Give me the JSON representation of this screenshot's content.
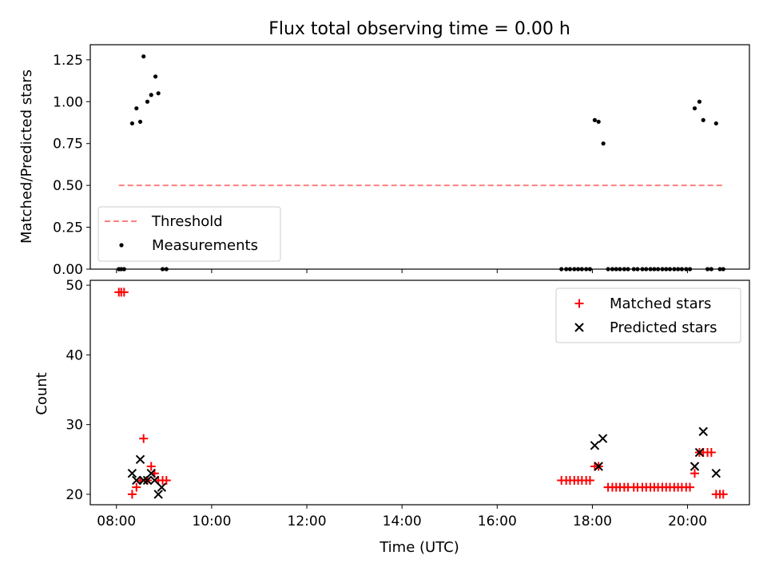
{
  "chart_data": [
    {
      "type": "scatter",
      "title": "Flux total observing time = 0.00 h",
      "xlabel": "",
      "ylabel": "Matched/Predicted stars",
      "ylim": [
        0,
        1.34
      ],
      "yticks": [
        "0.00",
        "0.25",
        "0.50",
        "0.75",
        "1.00",
        "1.25"
      ],
      "legend_position": "lower-left",
      "threshold": {
        "name": "Threshold",
        "value": 0.5,
        "x": [
          8.05,
          20.75
        ],
        "color": "#ff7f7f",
        "style": "dashed"
      },
      "series": [
        {
          "name": "Measurements",
          "color": "#000000",
          "marker": "dot",
          "points": [
            [
              8.05,
              0.0
            ],
            [
              8.1,
              0.0
            ],
            [
              8.16,
              0.0
            ],
            [
              8.33,
              0.87
            ],
            [
              8.42,
              0.96
            ],
            [
              8.5,
              0.88
            ],
            [
              8.57,
              1.27
            ],
            [
              8.65,
              1.0
            ],
            [
              8.73,
              1.04
            ],
            [
              8.82,
              1.15
            ],
            [
              8.88,
              1.05
            ],
            [
              8.97,
              0.0
            ],
            [
              9.05,
              0.0
            ],
            [
              17.35,
              0.0
            ],
            [
              17.45,
              0.0
            ],
            [
              17.53,
              0.0
            ],
            [
              17.62,
              0.0
            ],
            [
              17.7,
              0.0
            ],
            [
              17.78,
              0.0
            ],
            [
              17.87,
              0.0
            ],
            [
              17.95,
              0.0
            ],
            [
              18.05,
              0.89
            ],
            [
              18.13,
              0.88
            ],
            [
              18.23,
              0.75
            ],
            [
              18.33,
              0.0
            ],
            [
              18.42,
              0.0
            ],
            [
              18.5,
              0.0
            ],
            [
              18.58,
              0.0
            ],
            [
              18.67,
              0.0
            ],
            [
              18.75,
              0.0
            ],
            [
              18.87,
              0.0
            ],
            [
              18.95,
              0.0
            ],
            [
              19.05,
              0.0
            ],
            [
              19.13,
              0.0
            ],
            [
              19.22,
              0.0
            ],
            [
              19.3,
              0.0
            ],
            [
              19.38,
              0.0
            ],
            [
              19.47,
              0.0
            ],
            [
              19.55,
              0.0
            ],
            [
              19.63,
              0.0
            ],
            [
              19.72,
              0.0
            ],
            [
              19.8,
              0.0
            ],
            [
              19.88,
              0.0
            ],
            [
              19.97,
              0.0
            ],
            [
              20.05,
              0.0
            ],
            [
              20.15,
              0.96
            ],
            [
              20.25,
              1.0
            ],
            [
              20.33,
              0.89
            ],
            [
              20.42,
              0.0
            ],
            [
              20.5,
              0.0
            ],
            [
              20.6,
              0.87
            ],
            [
              20.68,
              0.0
            ],
            [
              20.75,
              0.0
            ]
          ]
        }
      ]
    },
    {
      "type": "scatter",
      "title": "",
      "xlabel": "Time (UTC)",
      "ylabel": "Count",
      "ylim": [
        18.5,
        50.7
      ],
      "yticks": [
        "20",
        "30",
        "40",
        "50"
      ],
      "xlim": [
        7.45,
        21.3
      ],
      "xticks": [
        {
          "value": 8,
          "label": "08:00"
        },
        {
          "value": 10,
          "label": "10:00"
        },
        {
          "value": 12,
          "label": "12:00"
        },
        {
          "value": 14,
          "label": "14:00"
        },
        {
          "value": 16,
          "label": "16:00"
        },
        {
          "value": 18,
          "label": "18:00"
        },
        {
          "value": 20,
          "label": "20:00"
        }
      ],
      "legend_position": "upper-right",
      "series": [
        {
          "name": "Matched stars",
          "color": "#ff0000",
          "marker": "plus",
          "points": [
            [
              8.05,
              49
            ],
            [
              8.1,
              49
            ],
            [
              8.16,
              49
            ],
            [
              8.33,
              20
            ],
            [
              8.42,
              21
            ],
            [
              8.5,
              22
            ],
            [
              8.57,
              28
            ],
            [
              8.65,
              22
            ],
            [
              8.73,
              24
            ],
            [
              8.8,
              23
            ],
            [
              8.88,
              22
            ],
            [
              8.97,
              22
            ],
            [
              9.05,
              22
            ],
            [
              17.35,
              22
            ],
            [
              17.45,
              22
            ],
            [
              17.53,
              22
            ],
            [
              17.62,
              22
            ],
            [
              17.7,
              22
            ],
            [
              17.78,
              22
            ],
            [
              17.87,
              22
            ],
            [
              17.95,
              22
            ],
            [
              18.05,
              24
            ],
            [
              18.13,
              24
            ],
            [
              18.33,
              21
            ],
            [
              18.42,
              21
            ],
            [
              18.5,
              21
            ],
            [
              18.58,
              21
            ],
            [
              18.67,
              21
            ],
            [
              18.75,
              21
            ],
            [
              18.87,
              21
            ],
            [
              18.95,
              21
            ],
            [
              19.05,
              21
            ],
            [
              19.13,
              21
            ],
            [
              19.22,
              21
            ],
            [
              19.3,
              21
            ],
            [
              19.38,
              21
            ],
            [
              19.47,
              21
            ],
            [
              19.55,
              21
            ],
            [
              19.63,
              21
            ],
            [
              19.72,
              21
            ],
            [
              19.8,
              21
            ],
            [
              19.88,
              21
            ],
            [
              19.97,
              21
            ],
            [
              20.05,
              21
            ],
            [
              20.15,
              23
            ],
            [
              20.25,
              26
            ],
            [
              20.33,
              26
            ],
            [
              20.42,
              26
            ],
            [
              20.5,
              26
            ],
            [
              20.6,
              20
            ],
            [
              20.68,
              20
            ],
            [
              20.75,
              20
            ]
          ]
        },
        {
          "name": "Predicted stars",
          "color": "#000000",
          "marker": "x",
          "points": [
            [
              8.33,
              23
            ],
            [
              8.42,
              22
            ],
            [
              8.5,
              25
            ],
            [
              8.57,
              22
            ],
            [
              8.65,
              22
            ],
            [
              8.73,
              23
            ],
            [
              8.8,
              22
            ],
            [
              8.88,
              20
            ],
            [
              8.95,
              21
            ],
            [
              18.05,
              27
            ],
            [
              18.13,
              24
            ],
            [
              18.22,
              28
            ],
            [
              20.15,
              24
            ],
            [
              20.25,
              26
            ],
            [
              20.33,
              29
            ],
            [
              20.6,
              23
            ]
          ]
        }
      ]
    }
  ]
}
